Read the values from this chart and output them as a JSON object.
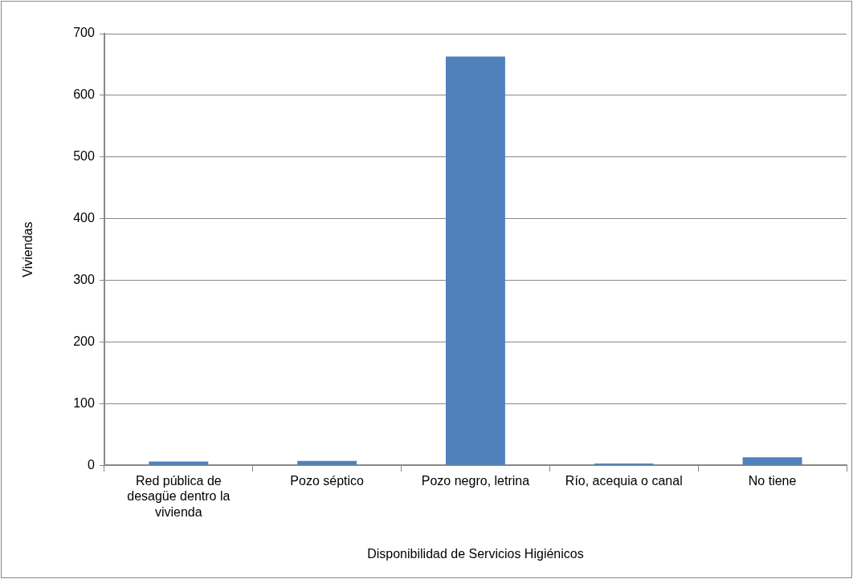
{
  "chart_data": {
    "type": "bar",
    "xlabel": "Disponibilidad de Servicios Higiénicos",
    "ylabel": "Viviendas",
    "categories": [
      "Red pública de desagüe dentro la vivienda",
      "Pozo séptico",
      "Pozo negro, letrina",
      "Río, acequia o canal",
      "No tiene"
    ],
    "values": [
      6,
      7,
      663,
      3,
      13
    ],
    "color": "#4f81bd",
    "ylim": [
      0,
      700
    ],
    "yticks": [
      0,
      100,
      200,
      300,
      400,
      500,
      600,
      700
    ],
    "grid": "y",
    "legend": false
  }
}
